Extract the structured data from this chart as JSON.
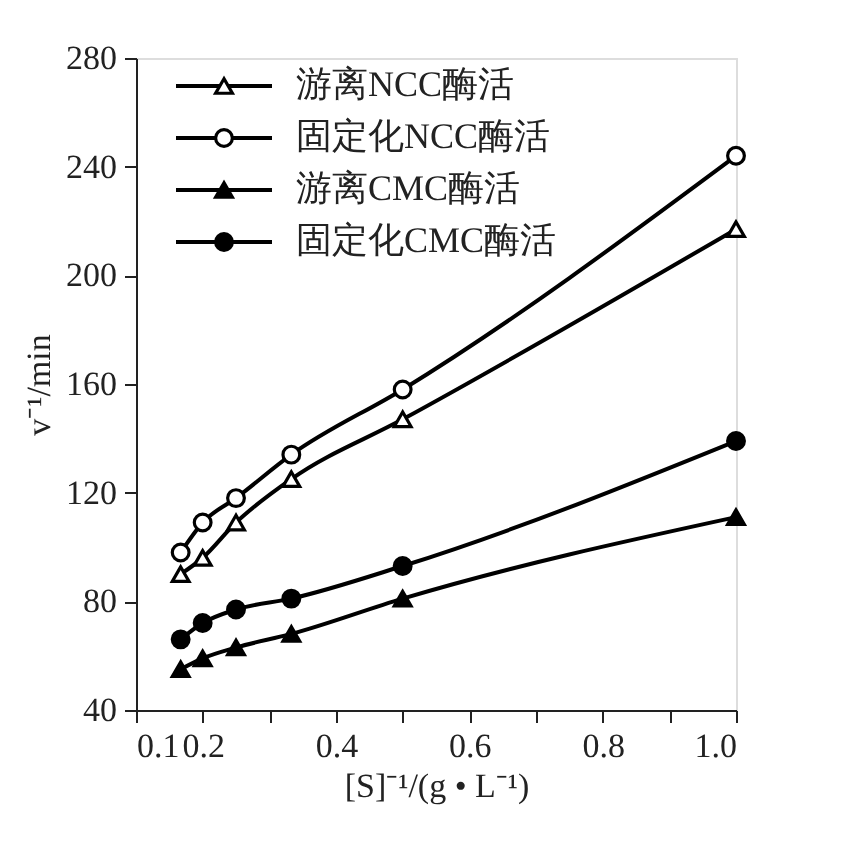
{
  "chart_data": {
    "type": "line",
    "xlabel": "[S]⁻¹/(g • L⁻¹)",
    "ylabel": "v⁻¹/min",
    "x": [
      0.167,
      0.2,
      0.25,
      0.333,
      0.5,
      1.0
    ],
    "series": [
      {
        "name": "游离NCC酶活",
        "color": "#000000",
        "marker": "triangle",
        "values": [
          90,
          96,
          109,
          125,
          147,
          217
        ]
      },
      {
        "name": "固定化NCC酶活",
        "color": "#000000",
        "marker": "circle",
        "values": [
          98,
          109,
          118,
          134,
          158,
          244
        ]
      },
      {
        "name": "游离CMC酶活",
        "color": "#000000",
        "marker": "triangle",
        "values": [
          55,
          59,
          63,
          68,
          81,
          111
        ]
      },
      {
        "name": "固定化CMC酶活",
        "color": "#000000",
        "marker": "circle",
        "values": [
          66,
          72,
          77,
          81,
          93,
          139
        ]
      }
    ],
    "xlim": [
      0.1,
      1.0
    ],
    "ylim": [
      40,
      280
    ],
    "xticks": [
      0.1,
      0.2,
      {
        "value": 0.3,
        "label": null
      },
      0.4,
      {
        "value": 0.5,
        "label": null
      },
      0.6,
      {
        "value": 0.7,
        "label": null
      },
      0.8,
      {
        "value": 0.9,
        "label": null
      },
      {
        "value": 1.0,
        "label": "1.0"
      }
    ],
    "yticks": [
      40,
      80,
      120,
      160,
      200,
      240,
      280
    ],
    "legend": "top left",
    "grid": false,
    "line_style": "solid"
  }
}
